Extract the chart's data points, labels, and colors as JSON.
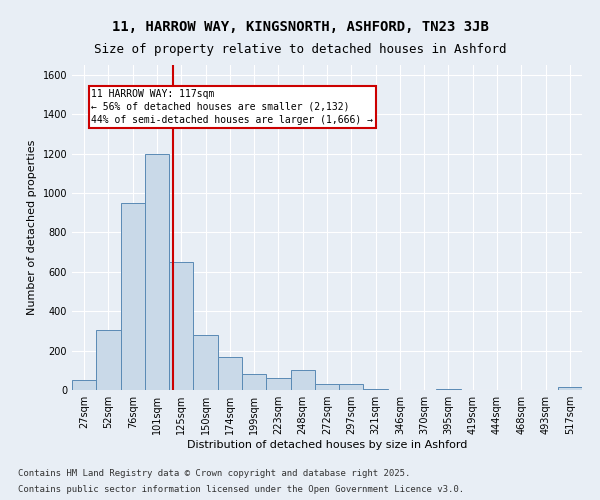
{
  "title1": "11, HARROW WAY, KINGSNORTH, ASHFORD, TN23 3JB",
  "title2": "Size of property relative to detached houses in Ashford",
  "xlabel": "Distribution of detached houses by size in Ashford",
  "ylabel": "Number of detached properties",
  "bin_labels": [
    "27sqm",
    "52sqm",
    "76sqm",
    "101sqm",
    "125sqm",
    "150sqm",
    "174sqm",
    "199sqm",
    "223sqm",
    "248sqm",
    "272sqm",
    "297sqm",
    "321sqm",
    "346sqm",
    "370sqm",
    "395sqm",
    "419sqm",
    "444sqm",
    "468sqm",
    "493sqm",
    "517sqm"
  ],
  "bar_values": [
    50,
    305,
    950,
    1200,
    650,
    280,
    170,
    80,
    60,
    100,
    30,
    30,
    5,
    2,
    2,
    5,
    2,
    2,
    2,
    2,
    15
  ],
  "bar_color": "#c9d9e8",
  "bar_edge_color": "#5a8ab5",
  "bg_color": "#e8eef5",
  "grid_color": "#ffffff",
  "vline_color": "#cc0000",
  "annotation_text": "11 HARROW WAY: 117sqm\n← 56% of detached houses are smaller (2,132)\n44% of semi-detached houses are larger (1,666) →",
  "annotation_box_color": "#ffffff",
  "annotation_box_edge": "#cc0000",
  "ylim": [
    0,
    1650
  ],
  "yticks": [
    0,
    200,
    400,
    600,
    800,
    1000,
    1200,
    1400,
    1600
  ],
  "footer1": "Contains HM Land Registry data © Crown copyright and database right 2025.",
  "footer2": "Contains public sector information licensed under the Open Government Licence v3.0.",
  "title_fontsize": 10,
  "subtitle_fontsize": 9,
  "axis_label_fontsize": 8,
  "tick_fontsize": 7,
  "annotation_fontsize": 7,
  "footer_fontsize": 6.5
}
